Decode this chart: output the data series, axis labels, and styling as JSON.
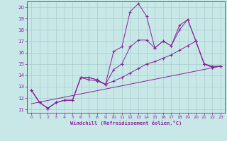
{
  "xlabel": "Windchill (Refroidissement éolien,°C)",
  "bg_color": "#c8e8e8",
  "line_color": "#882299",
  "grid_color": "#a8cccc",
  "xlim": [
    -0.5,
    23.5
  ],
  "ylim": [
    10.7,
    20.5
  ],
  "yticks": [
    11,
    12,
    13,
    14,
    15,
    16,
    17,
    18,
    19,
    20
  ],
  "xticks": [
    0,
    1,
    2,
    3,
    4,
    5,
    6,
    7,
    8,
    9,
    10,
    11,
    12,
    13,
    14,
    15,
    16,
    17,
    18,
    19,
    20,
    21,
    22,
    23
  ],
  "series": [
    {
      "x": [
        0,
        1,
        2,
        3,
        4,
        5,
        6,
        7,
        8,
        9,
        10,
        11,
        12,
        13,
        14,
        15,
        16,
        17,
        18,
        19,
        20,
        21,
        22,
        23
      ],
      "y": [
        12.7,
        11.6,
        11.1,
        11.6,
        11.8,
        11.8,
        13.8,
        13.8,
        13.6,
        13.2,
        16.1,
        16.5,
        19.6,
        20.3,
        19.2,
        16.4,
        17.0,
        16.6,
        18.4,
        18.9,
        17.0,
        15.0,
        14.7,
        14.8
      ]
    },
    {
      "x": [
        0,
        1,
        2,
        3,
        4,
        5,
        6,
        7,
        8,
        9,
        10,
        11,
        12,
        13,
        14,
        15,
        16,
        17,
        18,
        19,
        20,
        21,
        22,
        23
      ],
      "y": [
        12.7,
        11.6,
        11.1,
        11.6,
        11.8,
        11.8,
        13.8,
        13.8,
        13.6,
        13.2,
        14.5,
        15.0,
        16.5,
        17.1,
        17.1,
        16.4,
        17.0,
        16.6,
        18.0,
        18.9,
        17.0,
        15.0,
        14.7,
        14.8
      ]
    },
    {
      "x": [
        0,
        1,
        2,
        3,
        4,
        5,
        6,
        7,
        8,
        9,
        10,
        11,
        12,
        13,
        14,
        15,
        16,
        17,
        18,
        19,
        20,
        21,
        22,
        23
      ],
      "y": [
        12.7,
        11.6,
        11.1,
        11.6,
        11.8,
        11.8,
        13.8,
        13.6,
        13.5,
        13.2,
        13.5,
        13.8,
        14.2,
        14.6,
        15.0,
        15.2,
        15.5,
        15.8,
        16.2,
        16.6,
        17.0,
        15.0,
        14.8,
        14.8
      ]
    },
    {
      "x": [
        0,
        23
      ],
      "y": [
        11.5,
        14.8
      ]
    }
  ]
}
